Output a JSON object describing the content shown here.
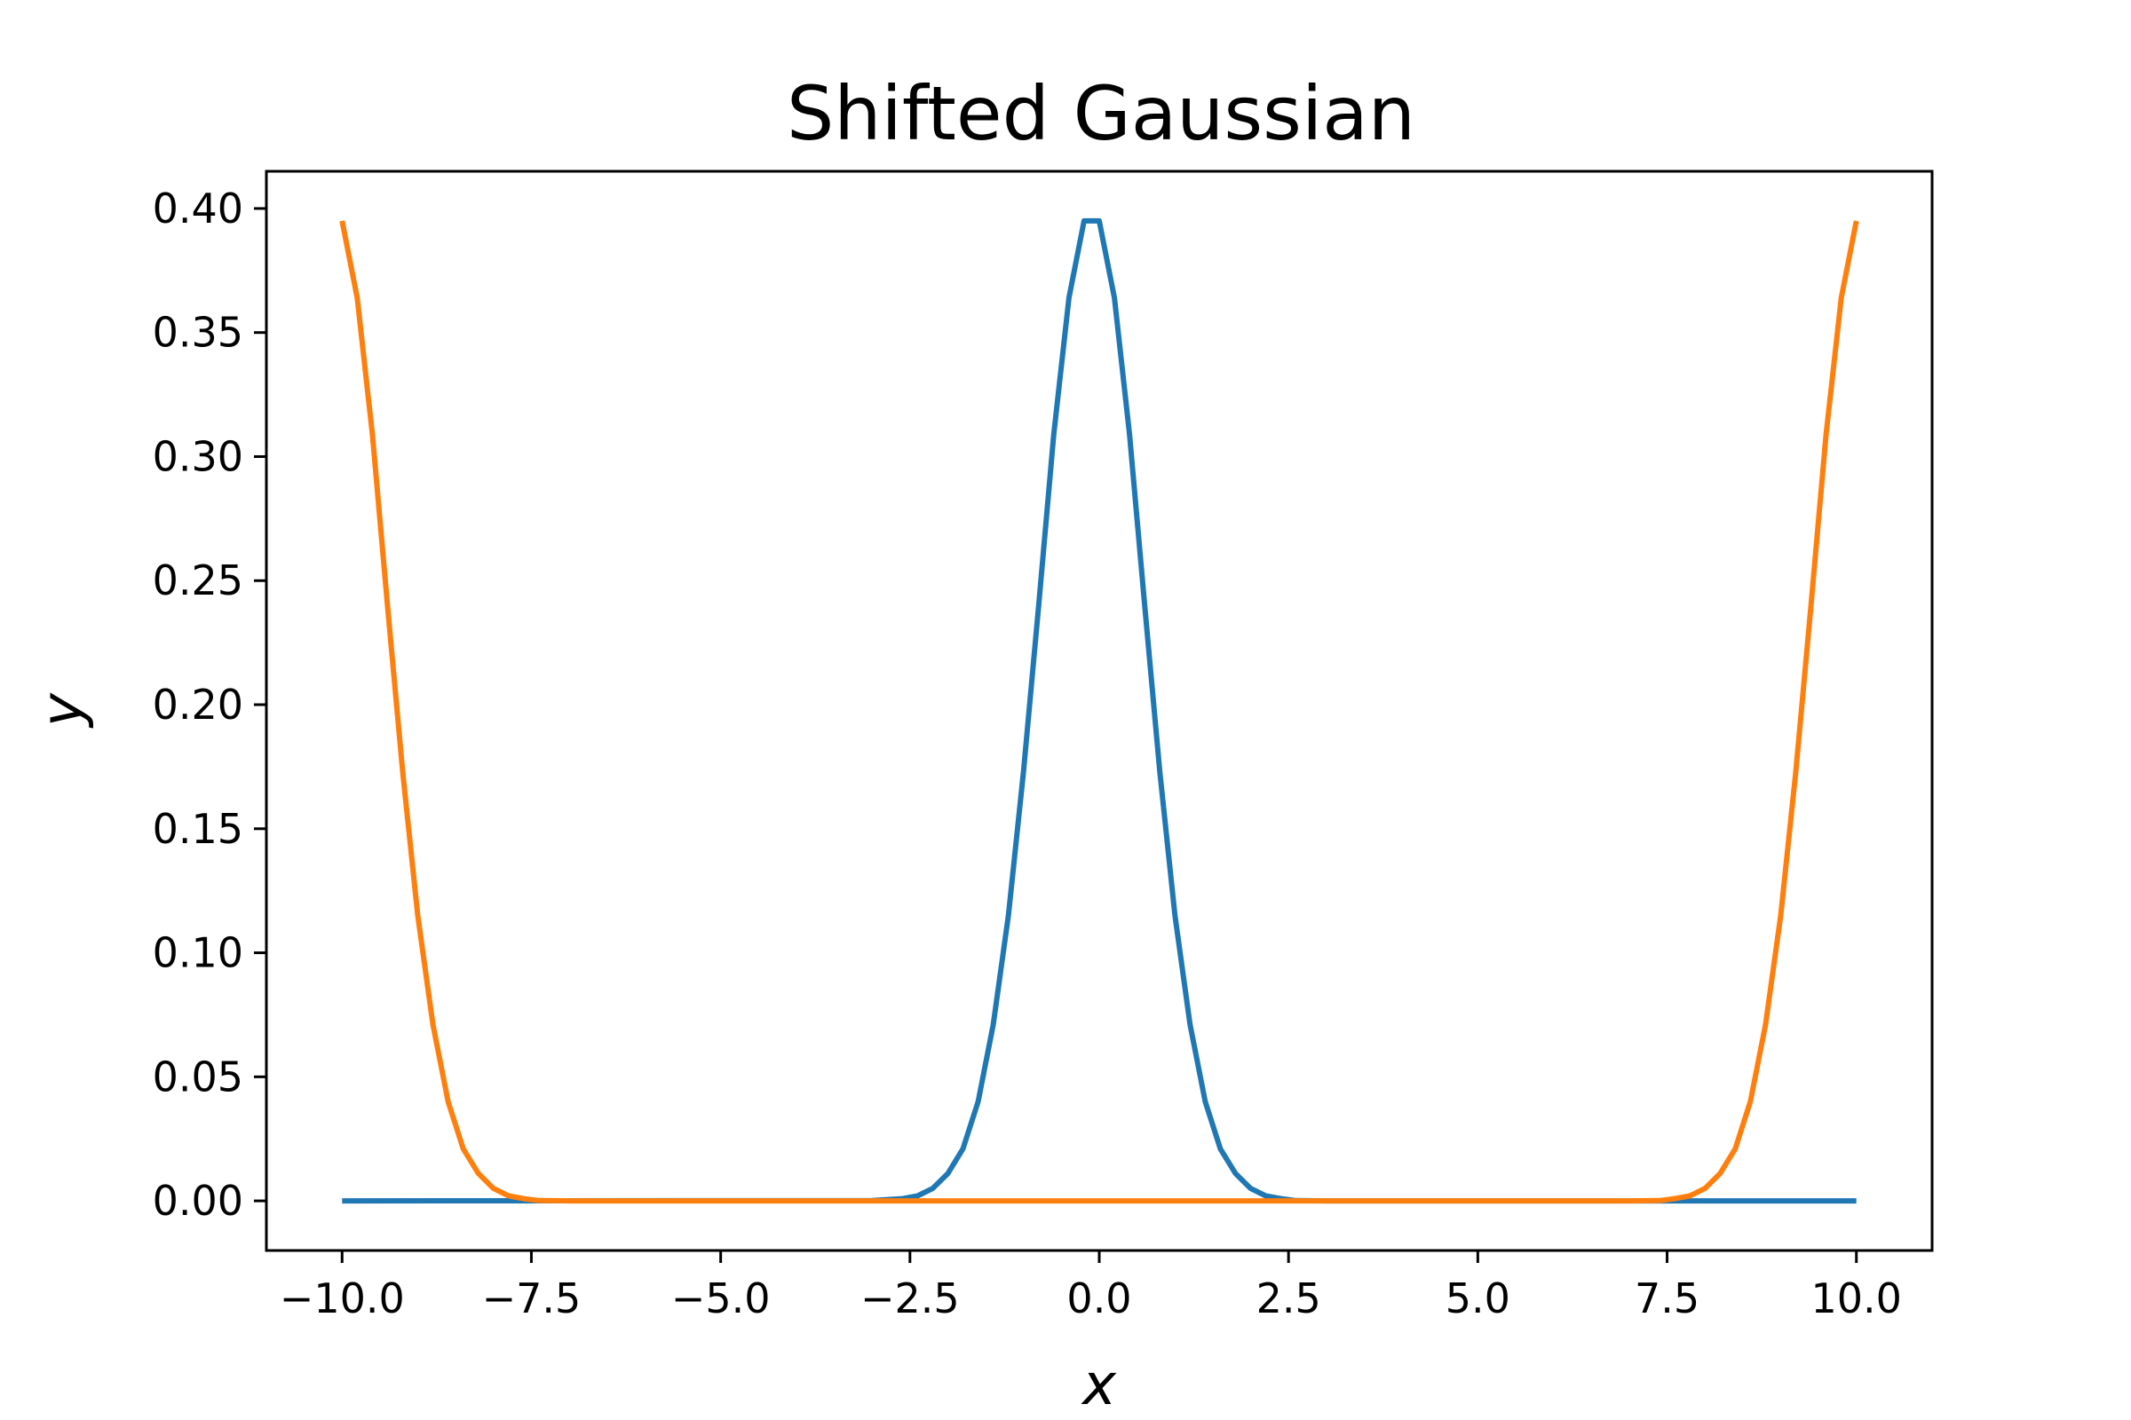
{
  "chart_data": {
    "type": "line",
    "title": "Shifted Gaussian",
    "xlabel": "x",
    "ylabel": "y",
    "xlim": [
      -11,
      11
    ],
    "ylim": [
      -0.02,
      0.415
    ],
    "xticks": [
      -10.0,
      -7.5,
      -5.0,
      -2.5,
      0.0,
      2.5,
      5.0,
      7.5,
      10.0
    ],
    "xtick_labels": [
      "−10.0",
      "−7.5",
      "−5.0",
      "−2.5",
      "0.0",
      "2.5",
      "5.0",
      "7.5",
      "10.0"
    ],
    "yticks": [
      0.0,
      0.05,
      0.1,
      0.15,
      0.2,
      0.25,
      0.3,
      0.35,
      0.4
    ],
    "ytick_labels": [
      "0.00",
      "0.05",
      "0.10",
      "0.15",
      "0.20",
      "0.25",
      "0.30",
      "0.35",
      "0.40"
    ],
    "grid": false,
    "legend": "none",
    "series": [
      {
        "color": "#1f77b4",
        "x": [
          -10.0,
          -3.0,
          -2.6,
          -2.4,
          -2.2,
          -2.0,
          -1.8,
          -1.6,
          -1.4,
          -1.2,
          -1.0,
          -0.8,
          -0.6,
          -0.4,
          -0.2,
          0.0,
          0.2,
          0.4,
          0.6,
          0.8,
          1.0,
          1.2,
          1.4,
          1.6,
          1.8,
          2.0,
          2.2,
          2.4,
          2.6,
          3.0,
          10.0
        ],
        "y": [
          0.0,
          0.0001,
          0.0009,
          0.002,
          0.005,
          0.011,
          0.021,
          0.04,
          0.071,
          0.115,
          0.173,
          0.24,
          0.309,
          0.364,
          0.395,
          0.395,
          0.364,
          0.309,
          0.24,
          0.173,
          0.115,
          0.071,
          0.04,
          0.021,
          0.011,
          0.005,
          0.002,
          0.0009,
          0.0001,
          0.0,
          0.0
        ]
      },
      {
        "color": "#ff7f0e",
        "x": [
          -10.0,
          -9.8,
          -9.6,
          -9.4,
          -9.2,
          -9.0,
          -8.8,
          -8.6,
          -8.4,
          -8.2,
          -8.0,
          -7.8,
          -7.6,
          -7.4,
          -7.0,
          7.0,
          7.4,
          7.6,
          7.8,
          8.0,
          8.2,
          8.4,
          8.6,
          8.8,
          9.0,
          9.2,
          9.4,
          9.6,
          9.8,
          10.0
        ],
        "y": [
          0.395,
          0.364,
          0.309,
          0.24,
          0.173,
          0.115,
          0.071,
          0.04,
          0.021,
          0.011,
          0.005,
          0.002,
          0.0009,
          0.0001,
          0.0,
          0.0,
          0.0001,
          0.0009,
          0.002,
          0.005,
          0.011,
          0.021,
          0.04,
          0.071,
          0.115,
          0.173,
          0.24,
          0.309,
          0.364,
          0.395
        ]
      }
    ]
  }
}
